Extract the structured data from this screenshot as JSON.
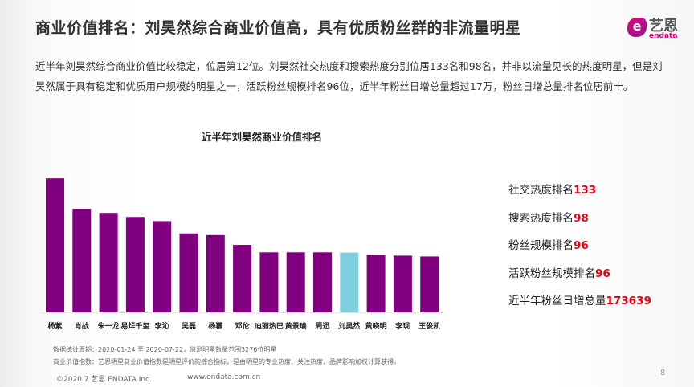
{
  "header": {
    "title": "商业价值排名：刘昊然综合商业价值高，具有优质粉丝群的非流量明星",
    "logo": {
      "mark": "e",
      "cn": "艺恩",
      "en": "endata"
    }
  },
  "summary": "近半年刘昊然综合商业价值比较稳定，位居第12位。刘昊然社交热度和搜索热度分别位居133名和98名，并非以流量见长的热度明星，但是刘昊然属于具有稳定和优质用户规模的明星之一，活跃粉丝规模排名96位，近半年粉丝日增总量超过17万，粉丝日增总量排名位居前十。",
  "chart_data": {
    "type": "bar",
    "title": "近半年刘昊然商业价值排名",
    "categories": [
      "杨紫",
      "肖战",
      "朱一龙",
      "易烊千玺",
      "李沁",
      "吴磊",
      "杨幂",
      "邓伦",
      "迪丽热巴",
      "黄景瑜",
      "周迅",
      "刘昊然",
      "黄晓明",
      "李现",
      "王俊凯"
    ],
    "values": [
      163,
      126,
      121,
      116,
      111,
      96,
      94,
      82,
      73,
      73,
      73,
      72.7,
      70,
      69,
      68
    ],
    "value_note": "relative bar heights; no value axis printed",
    "ylim": [
      0,
      170
    ],
    "highlight": "刘昊然",
    "colors": {
      "default": "#800080",
      "highlight": "#7ecfe0"
    },
    "grid": false
  },
  "stats": [
    {
      "label": "社交热度排名",
      "value": "133"
    },
    {
      "label": "搜索热度排名",
      "value": "98"
    },
    {
      "label": "粉丝规模排名",
      "value": "96"
    },
    {
      "label": "活跃粉丝规模排名",
      "value": "96"
    },
    {
      "label": "近半年粉丝日增总量",
      "value": "173639"
    }
  ],
  "notes": {
    "period": "数据统计周期：2020-01-24 至 2020-07-22，监测明星数量范围3276位明星",
    "definition": "商业价值指数：艺恩明星商业价值指数是明星评价的综合指标，是由明星的专业热度、关注热度、品牌影响加权计算获得。"
  },
  "footer": {
    "copyright": "©2020.7 艺恩 ENDATA Inc.",
    "website": "www.endata.com.cn",
    "page": "8"
  }
}
